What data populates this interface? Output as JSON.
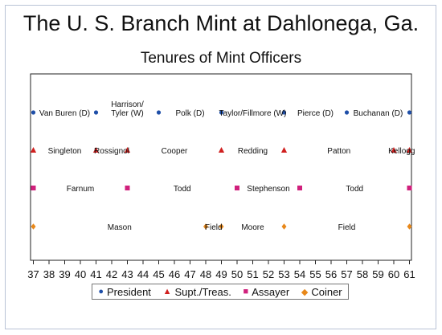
{
  "title": "The U. S. Branch Mint at Dahlonega, Ga.",
  "subtitle": "Tenures of Mint Officers",
  "chart_data": {
    "type": "scatter",
    "title": "Tenures of Mint Officers",
    "x_ticks": [
      "37",
      "38",
      "39",
      "40",
      "41",
      "42",
      "43",
      "44",
      "45",
      "46",
      "47",
      "48",
      "49",
      "50",
      "51",
      "52",
      "53",
      "54",
      "55",
      "56",
      "57",
      "58",
      "59",
      "60",
      "61"
    ],
    "xlim": [
      37,
      61
    ],
    "grid": false,
    "legend_position": "bottom",
    "series": [
      {
        "name": "President",
        "color": "#1f4fa8",
        "marker": "circle",
        "points": [
          37,
          41,
          45,
          49,
          53,
          57,
          61
        ],
        "labels": [
          {
            "text": "Van Buren (D)",
            "x": 39
          },
          {
            "text": "Harrison/\nTyler (W)",
            "x": 43
          },
          {
            "text": "Polk (D)",
            "x": 47
          },
          {
            "text": "Taylor/Fillmore (W)",
            "x": 51
          },
          {
            "text": "Pierce (D)",
            "x": 55
          },
          {
            "text": "Buchanan (D)",
            "x": 59
          }
        ]
      },
      {
        "name": "Supt./Treas.",
        "color": "#d0201f",
        "marker": "triangle",
        "points": [
          37,
          41,
          43,
          49,
          53,
          60,
          61
        ],
        "labels": [
          {
            "text": "Singleton",
            "x": 39
          },
          {
            "text": "Rossignol",
            "x": 42
          },
          {
            "text": "Cooper",
            "x": 46
          },
          {
            "text": "Redding",
            "x": 51
          },
          {
            "text": "Patton",
            "x": 56.5
          },
          {
            "text": "Kellogg",
            "x": 60.5
          }
        ]
      },
      {
        "name": "Assayer",
        "color": "#d0207c",
        "marker": "square",
        "points": [
          37,
          43,
          50,
          54,
          61
        ],
        "labels": [
          {
            "text": "Farnum",
            "x": 40
          },
          {
            "text": "Todd",
            "x": 46.5
          },
          {
            "text": "Stephenson",
            "x": 52
          },
          {
            "text": "Todd",
            "x": 57.5
          }
        ]
      },
      {
        "name": "Coiner",
        "color": "#e8881a",
        "marker": "diamond",
        "points": [
          37,
          48,
          49,
          53,
          61
        ],
        "labels": [
          {
            "text": "Mason",
            "x": 42.5
          },
          {
            "text": "Field",
            "x": 48.5
          },
          {
            "text": "Moore",
            "x": 51
          },
          {
            "text": "Field",
            "x": 57
          }
        ]
      }
    ]
  }
}
